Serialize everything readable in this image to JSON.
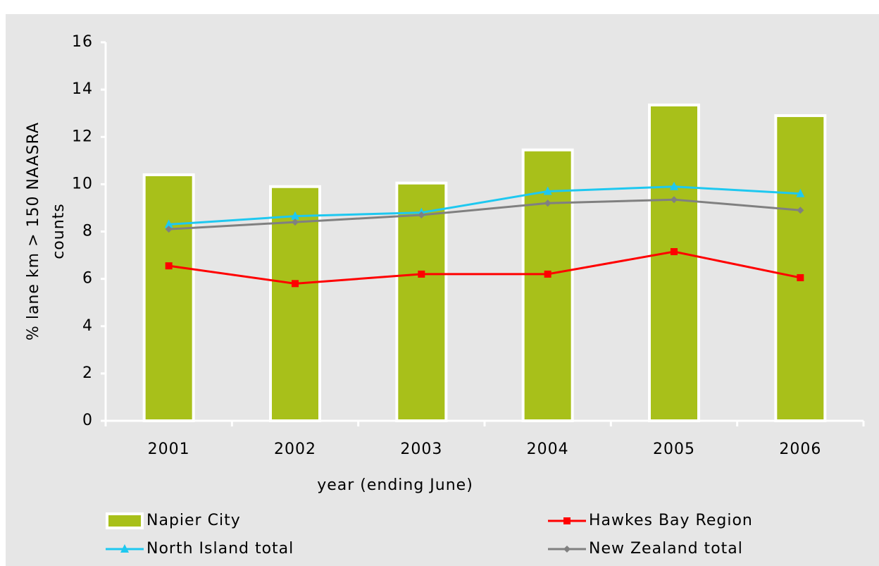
{
  "chart_data": {
    "type": "bar",
    "xlabel": "year (ending June)",
    "ylabel": [
      "% lane km > 150 NAASRA",
      "counts"
    ],
    "categories": [
      "2001",
      "2002",
      "2003",
      "2004",
      "2005",
      "2006"
    ],
    "ylim": [
      0,
      16
    ],
    "yticks": [
      0,
      2,
      4,
      6,
      8,
      10,
      12,
      14,
      16
    ],
    "series": [
      {
        "name": "Napier City",
        "type": "bar",
        "color": "#a8c01a",
        "values": [
          10.4,
          9.9,
          10.05,
          11.45,
          13.35,
          12.9
        ]
      },
      {
        "name": "Hawkes Bay Region",
        "type": "line",
        "marker": "square",
        "color": "#ff0000",
        "values": [
          6.55,
          5.8,
          6.2,
          6.2,
          7.15,
          6.05
        ]
      },
      {
        "name": "North Island total",
        "type": "line",
        "marker": "triangle",
        "color": "#1ec8f0",
        "values": [
          8.3,
          8.65,
          8.8,
          9.7,
          9.9,
          9.6
        ]
      },
      {
        "name": "New Zealand total",
        "type": "line",
        "marker": "diamond",
        "color": "#808080",
        "values": [
          8.1,
          8.4,
          8.7,
          9.2,
          9.35,
          8.9
        ]
      }
    ]
  }
}
